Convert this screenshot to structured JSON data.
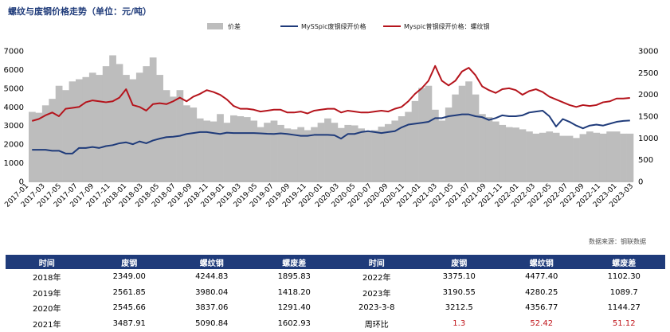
{
  "title": "螺纹与废钢价格走势（单位：元/吨）",
  "source": "数据来源：钢联数据",
  "chart_data": {
    "type": "bar+line",
    "legend_position": "top",
    "grid": false,
    "y_left": {
      "min": 0,
      "max": 7000,
      "ticks": [
        "0",
        "1000",
        "2000",
        "3000",
        "4000",
        "5000",
        "6000",
        "7000"
      ]
    },
    "y_right": {
      "min": 0,
      "max": 3000,
      "ticks": [
        "0",
        "500",
        "1000",
        "1500",
        "2000",
        "2500",
        "3000"
      ]
    },
    "x_ticks": [
      "2017-01",
      "2017-03",
      "2017-05",
      "2017-07",
      "2017-09",
      "2017-11",
      "2018-01",
      "2018-03",
      "2018-05",
      "2018-07",
      "2018-09",
      "2018-11",
      "2019-01",
      "2019-03",
      "2019-05",
      "2019-07",
      "2019-09",
      "2019-11",
      "2020-01",
      "2020-03",
      "2020-05",
      "2020-07",
      "2020-09",
      "2020-11",
      "2021-01",
      "2021-03",
      "2021-05",
      "2021-07",
      "2021-09",
      "2021-11",
      "2022-01",
      "2022-03",
      "2022-05",
      "2022-07",
      "2022-09",
      "2022-11",
      "2023-01",
      "2023-03"
    ],
    "series": [
      {
        "name": "价差",
        "axis": "right",
        "color": "#bdbdbd",
        "values": [
          1600,
          1580,
          1750,
          1900,
          2200,
          2100,
          2300,
          2350,
          2400,
          2500,
          2450,
          2650,
          2900,
          2700,
          2450,
          2350,
          2500,
          2650,
          2850,
          2450,
          2100,
          1950,
          2100,
          1750,
          1700,
          1450,
          1400,
          1380,
          1550,
          1350,
          1520,
          1500,
          1480,
          1400,
          1250,
          1350,
          1400,
          1300,
          1220,
          1200,
          1250,
          1180,
          1250,
          1350,
          1450,
          1350,
          1230,
          1300,
          1290,
          1220,
          1150,
          1180,
          1260,
          1320,
          1400,
          1500,
          1600,
          1850,
          2150,
          2200,
          1650,
          1400,
          1700,
          2000,
          2200,
          2300,
          2000,
          1550,
          1480,
          1380,
          1300,
          1250,
          1240,
          1200,
          1150,
          1100,
          1120,
          1150,
          1120,
          1050,
          1050,
          1000,
          1090,
          1150,
          1120,
          1100,
          1150,
          1150,
          1100,
          1100
        ]
      },
      {
        "name": "MySSpic废钢绿开价格",
        "axis": "left",
        "color": "#1f3b7a",
        "values": [
          1700,
          1700,
          1700,
          1650,
          1650,
          1500,
          1500,
          1800,
          1800,
          1850,
          1800,
          1900,
          1950,
          2050,
          2100,
          2000,
          2150,
          2050,
          2200,
          2300,
          2380,
          2400,
          2450,
          2550,
          2600,
          2650,
          2650,
          2600,
          2550,
          2620,
          2600,
          2600,
          2600,
          2600,
          2580,
          2560,
          2550,
          2580,
          2550,
          2500,
          2450,
          2450,
          2500,
          2500,
          2500,
          2480,
          2300,
          2550,
          2550,
          2650,
          2700,
          2650,
          2600,
          2650,
          2700,
          2900,
          3050,
          3100,
          3150,
          3200,
          3400,
          3400,
          3500,
          3550,
          3600,
          3600,
          3500,
          3450,
          3300,
          3400,
          3550,
          3500,
          3500,
          3550,
          3700,
          3750,
          3800,
          3500,
          2950,
          3350,
          3200,
          3000,
          2850,
          3000,
          3050,
          3000,
          3100,
          3200,
          3250,
          3270
        ]
      },
      {
        "name": "Myspic普钢绿开价格：螺纹钢",
        "axis": "left",
        "color": "#b5141c",
        "values": [
          3250,
          3350,
          3550,
          3700,
          3500,
          3900,
          3950,
          4000,
          4250,
          4350,
          4300,
          4250,
          4300,
          4500,
          4950,
          4100,
          4000,
          3800,
          4150,
          4200,
          4150,
          4300,
          4500,
          4300,
          4550,
          4700,
          4900,
          4800,
          4650,
          4400,
          4050,
          3900,
          3900,
          3850,
          3750,
          3800,
          3850,
          3850,
          3700,
          3700,
          3750,
          3650,
          3800,
          3850,
          3900,
          3900,
          3700,
          3800,
          3750,
          3700,
          3700,
          3750,
          3800,
          3750,
          3900,
          4000,
          4300,
          4700,
          5000,
          5400,
          6200,
          5400,
          5150,
          5400,
          5900,
          6100,
          5700,
          5100,
          4900,
          4750,
          4950,
          5000,
          4900,
          4650,
          4850,
          4950,
          4800,
          4550,
          4400,
          4250,
          4100,
          4000,
          4100,
          4050,
          4100,
          4250,
          4300,
          4450,
          4450,
          4480
        ]
      }
    ]
  },
  "table": {
    "headers": [
      "时间",
      "废钢",
      "螺纹钢",
      "螺废差",
      "时间",
      "废钢",
      "螺纹钢",
      "螺废差"
    ],
    "rows": [
      [
        "2018年",
        "2349.00",
        "4244.83",
        "1895.83",
        "2022年",
        "3375.10",
        "4477.40",
        "1102.30"
      ],
      [
        "2019年",
        "2561.85",
        "3980.04",
        "1418.20",
        "2023年",
        "3190.55",
        "4280.25",
        "1089.7"
      ],
      [
        "2020年",
        "2545.66",
        "3837.06",
        "1291.40",
        "2023-3-8",
        "3212.5",
        "4356.77",
        "1144.27"
      ],
      [
        "2021年",
        "3487.91",
        "5090.84",
        "1602.93",
        "周环比",
        "1.3",
        "52.42",
        "51.12"
      ]
    ]
  }
}
